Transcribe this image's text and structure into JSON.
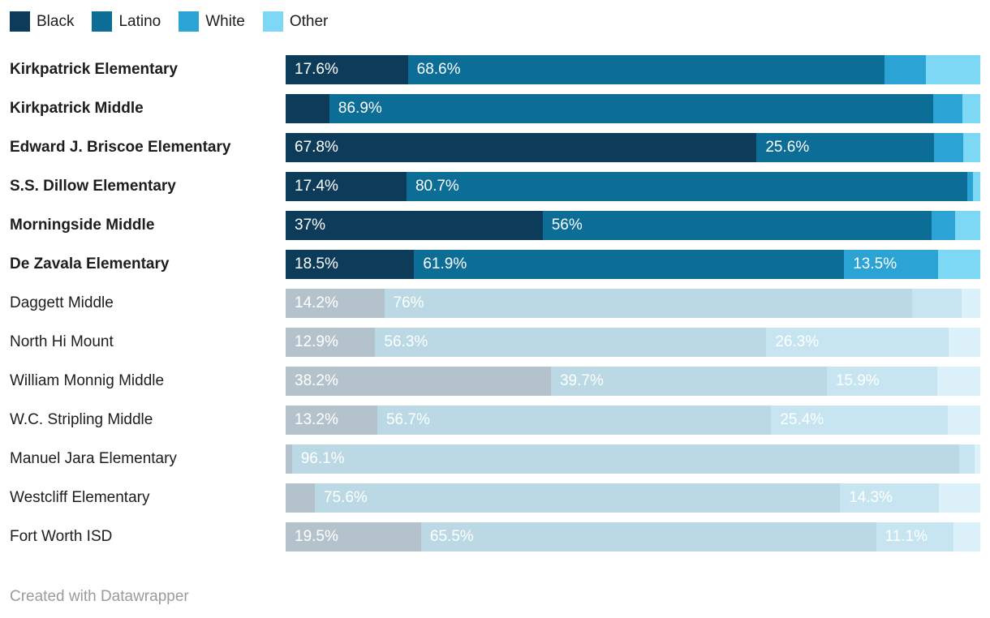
{
  "legend": {
    "position": "top",
    "items": [
      {
        "label": "Black",
        "color": "#0c3c59"
      },
      {
        "label": "Latino",
        "color": "#0c6d96"
      },
      {
        "label": "White",
        "color": "#2ba3d4"
      },
      {
        "label": "Other",
        "color": "#7dd8f6"
      }
    ]
  },
  "footer": {
    "credit": "Created with Datawrapper"
  },
  "chart_data": {
    "type": "bar",
    "variant": "stacked-horizontal",
    "unit": "%",
    "xlim": [
      0,
      100
    ],
    "grid": false,
    "legend_position": "top",
    "series_keys": [
      "Black",
      "Latino",
      "White",
      "Other"
    ],
    "palette": {
      "vivid": [
        "#0c3c59",
        "#0c6d96",
        "#2ba3d4",
        "#7dd8f6"
      ],
      "muted": [
        "#b4c3cb",
        "#bad9e4",
        "#c6e5f1",
        "#ddf1fa"
      ]
    },
    "rows": [
      {
        "name": "Kirkpatrick Elementary",
        "highlight": true,
        "values": [
          17.6,
          68.6,
          6.0,
          7.8
        ],
        "labels": [
          "17.6%",
          "68.6%",
          "",
          ""
        ]
      },
      {
        "name": "Kirkpatrick Middle",
        "highlight": true,
        "values": [
          6.3,
          86.9,
          4.2,
          2.6
        ],
        "labels": [
          "",
          "86.9%",
          "",
          ""
        ]
      },
      {
        "name": "Edward J. Briscoe Elementary",
        "highlight": true,
        "values": [
          67.8,
          25.6,
          4.2,
          2.4
        ],
        "labels": [
          "67.8%",
          "25.6%",
          "",
          ""
        ]
      },
      {
        "name": "S.S. Dillow Elementary",
        "highlight": true,
        "values": [
          17.4,
          80.7,
          0.8,
          1.1
        ],
        "labels": [
          "17.4%",
          "80.7%",
          "",
          ""
        ]
      },
      {
        "name": "Morningside Middle",
        "highlight": true,
        "values": [
          37.0,
          56.0,
          3.4,
          3.6
        ],
        "labels": [
          "37%",
          "56%",
          "",
          ""
        ]
      },
      {
        "name": "De Zavala Elementary",
        "highlight": true,
        "values": [
          18.5,
          61.9,
          13.5,
          6.1
        ],
        "labels": [
          "18.5%",
          "61.9%",
          "13.5%",
          ""
        ]
      },
      {
        "name": "Daggett Middle",
        "highlight": false,
        "values": [
          14.2,
          76.0,
          7.1,
          2.7
        ],
        "labels": [
          "14.2%",
          "76%",
          "",
          ""
        ]
      },
      {
        "name": "North Hi Mount",
        "highlight": false,
        "values": [
          12.9,
          56.3,
          26.3,
          4.5
        ],
        "labels": [
          "12.9%",
          "56.3%",
          "26.3%",
          ""
        ]
      },
      {
        "name": "William Monnig Middle",
        "highlight": false,
        "values": [
          38.2,
          39.7,
          15.9,
          6.2
        ],
        "labels": [
          "38.2%",
          "39.7%",
          "15.9%",
          ""
        ]
      },
      {
        "name": "W.C. Stripling Middle",
        "highlight": false,
        "values": [
          13.2,
          56.7,
          25.4,
          4.7
        ],
        "labels": [
          "13.2%",
          "56.7%",
          "25.4%",
          ""
        ]
      },
      {
        "name": "Manuel Jara Elementary",
        "highlight": false,
        "values": [
          0.9,
          96.1,
          2.2,
          0.8
        ],
        "labels": [
          "",
          "96.1%",
          "",
          ""
        ]
      },
      {
        "name": "Westcliff Elementary",
        "highlight": false,
        "values": [
          4.2,
          75.6,
          14.3,
          5.9
        ],
        "labels": [
          "",
          "75.6%",
          "14.3%",
          ""
        ]
      },
      {
        "name": "Fort Worth ISD",
        "highlight": false,
        "values": [
          19.5,
          65.5,
          11.1,
          3.9
        ],
        "labels": [
          "19.5%",
          "65.5%",
          "11.1%",
          ""
        ]
      }
    ]
  }
}
